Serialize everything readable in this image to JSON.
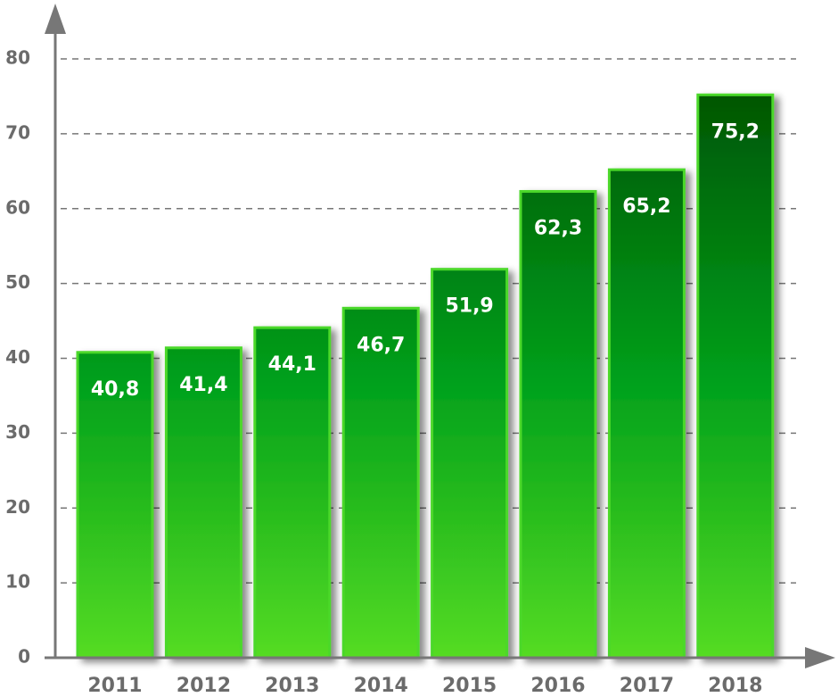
{
  "chart_data": {
    "type": "bar",
    "categories": [
      "2011",
      "2012",
      "2013",
      "2014",
      "2015",
      "2016",
      "2017",
      "2018"
    ],
    "values": [
      40.8,
      41.4,
      44.1,
      46.7,
      51.9,
      62.3,
      65.2,
      75.2
    ],
    "value_labels": [
      "40,8",
      "41,4",
      "44,1",
      "46,7",
      "51,9",
      "62,3",
      "65,2",
      "75,2"
    ],
    "ylim": [
      0,
      80
    ],
    "yticks": [
      0,
      10,
      20,
      30,
      40,
      50,
      60,
      70,
      80
    ],
    "grid": true
  }
}
